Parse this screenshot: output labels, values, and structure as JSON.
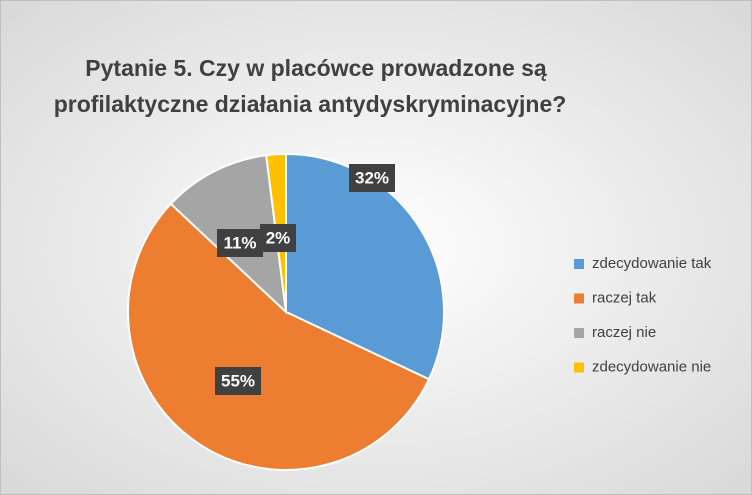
{
  "chart_data": {
    "type": "pie",
    "title": [
      "Pytanie 5.  Czy w placówce prowadzone są",
      "profilaktyczne działania antydyskryminacyjne?"
    ],
    "categories": [
      "zdecydowanie tak",
      "raczej tak",
      "raczej nie",
      "zdecydowanie nie"
    ],
    "values": [
      32,
      55,
      11,
      2
    ],
    "value_labels": [
      "32%",
      "55%",
      "11%",
      "2%"
    ],
    "colors": [
      "#5b9bd5",
      "#ed7d31",
      "#a5a5a5",
      "#ffc000"
    ],
    "legend": "right"
  }
}
